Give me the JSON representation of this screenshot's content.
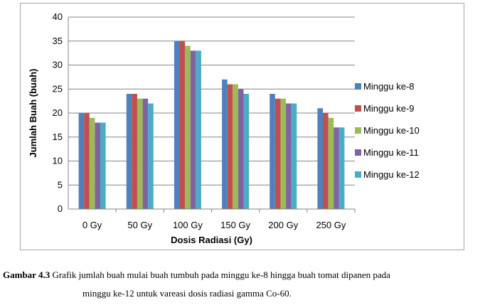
{
  "chart_data": {
    "type": "bar",
    "xlabel": "Dosis Radiasi (Gy)",
    "ylabel": "Jumlah Buah (buah)",
    "ylim": [
      0,
      40
    ],
    "yticks": [
      "0",
      "5",
      "10",
      "15",
      "20",
      "25",
      "30",
      "35",
      "40"
    ],
    "grid": true,
    "legend_position": "right",
    "categories": [
      "0 Gy",
      "50 Gy",
      "100 Gy",
      "150 Gy",
      "200 Gy",
      "250 Gy"
    ],
    "series": [
      {
        "name": "Minggu ke-8",
        "color": "#4f81bd",
        "values": [
          20,
          24,
          35,
          27,
          24,
          21
        ]
      },
      {
        "name": "Minggu ke-9",
        "color": "#c0504d",
        "values": [
          20,
          24,
          35,
          26,
          23,
          20
        ]
      },
      {
        "name": "Minggu ke-10",
        "color": "#9bbb59",
        "values": [
          19,
          23,
          34,
          26,
          23,
          19
        ]
      },
      {
        "name": "Minggu ke-11",
        "color": "#8064a2",
        "values": [
          18,
          23,
          33,
          25,
          22,
          17
        ]
      },
      {
        "name": "Minggu ke-12",
        "color": "#4bacc6",
        "values": [
          18,
          22,
          33,
          24,
          22,
          17
        ]
      }
    ]
  },
  "caption": {
    "label": "Gambar 4.3",
    "line1": " Grafik jumlah buah mulai buah tumbuh pada minggu ke-8 hingga buah tomat dipanen pada",
    "line2": "minggu ke-12 untuk vareasi dosis radiasi gamma   Co-60."
  }
}
